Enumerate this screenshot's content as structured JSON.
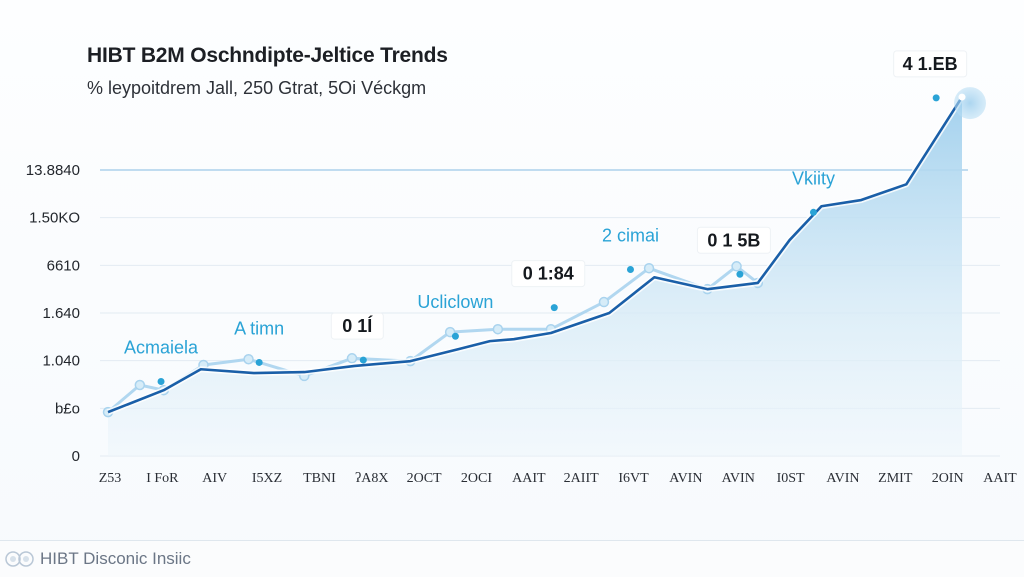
{
  "header": {
    "title": "HIBT B2M Oschndipte-Jeltice Trends",
    "subtitle": "% leypoitdrem Jall, 250 Gtrat, 5Oi Véckgm"
  },
  "footer": {
    "brand_text": "HIBT Disconic Insiic"
  },
  "colors": {
    "primary_line": "#1a5fa8",
    "secondary_line": "#a9d3ee",
    "area_fill_top": "#9fcfed",
    "area_fill_bottom": "#eef6fb",
    "annotation_blue": "#2aa3d6",
    "gridline": "#e3ebf2",
    "highlight_line": "#9cc8e8"
  },
  "chart_data": {
    "type": "area",
    "title": "HIBT B2M Oschndipte-Jeltice Trends",
    "subtitle": "% leypoitdrem Jall, 250 Gtrat, 5Oi Véckgm",
    "xlabel": "",
    "ylabel": "",
    "grid": true,
    "legend": "none",
    "y_tick_labels": [
      "0",
      "b£o",
      "1.040",
      "1.640",
      "6610",
      "1.50KO",
      "13.8840"
    ],
    "ylim": [
      0,
      6
    ],
    "highlight_gridline_at": 6,
    "x_tick_labels": [
      "Z53",
      "I FoR",
      "AIV",
      "I5XZ",
      "TBNI",
      "ʔA8X",
      "2OCT",
      "2OCI",
      "AAIT",
      "2AIIT",
      "I6VT",
      "AVIN",
      "AVIN",
      "I0ST",
      "AVIN",
      "ZMIT",
      "2OIN",
      "AAIT"
    ],
    "series": [
      {
        "name": "primary",
        "x": [
          0,
          1.05,
          1.75,
          2.75,
          3.7,
          4.65,
          5.7,
          6.6,
          7.2,
          7.65,
          8.35,
          9.45,
          10.3,
          11.3,
          12.25,
          12.85,
          13.45,
          14.2,
          15.05,
          16.1
        ],
        "values": [
          0.92,
          1.38,
          1.82,
          1.74,
          1.76,
          1.89,
          1.99,
          2.24,
          2.41,
          2.45,
          2.58,
          3.0,
          3.75,
          3.5,
          3.63,
          4.53,
          5.24,
          5.37,
          5.7,
          7.53
        ]
      },
      {
        "name": "secondary",
        "x": [
          0,
          0.6,
          1.05,
          1.8,
          2.65,
          3.7,
          4.6,
          5.7,
          6.45,
          7.35,
          8.35,
          9.35,
          10.2,
          11.3,
          11.85,
          12.25
        ],
        "values": [
          0.92,
          1.49,
          1.38,
          1.91,
          2.03,
          1.68,
          2.05,
          1.99,
          2.6,
          2.66,
          2.66,
          3.23,
          3.94,
          3.5,
          3.98,
          3.63
        ]
      }
    ],
    "annotations": [
      {
        "text": "Acmaiela",
        "style": "blue",
        "x": 1.0,
        "y": 2.15
      },
      {
        "text": "A timn",
        "style": "blue",
        "x": 2.85,
        "y": 2.55
      },
      {
        "text": "0 1Í",
        "style": "dark",
        "x": 4.7,
        "y": 2.6
      },
      {
        "text": "Ucliclown",
        "style": "blue",
        "x": 6.55,
        "y": 3.1
      },
      {
        "text": "0 1:84",
        "style": "dark",
        "x": 8.3,
        "y": 3.7
      },
      {
        "text": "2 cimai",
        "style": "blue",
        "x": 9.85,
        "y": 4.5
      },
      {
        "text": "0 1 5B",
        "style": "dark",
        "x": 11.8,
        "y": 4.4
      },
      {
        "text": "Vkiity",
        "style": "blue",
        "x": 13.3,
        "y": 5.7
      },
      {
        "text": "4 1.EB",
        "style": "dark",
        "x": 15.5,
        "y": 8.1
      }
    ]
  }
}
